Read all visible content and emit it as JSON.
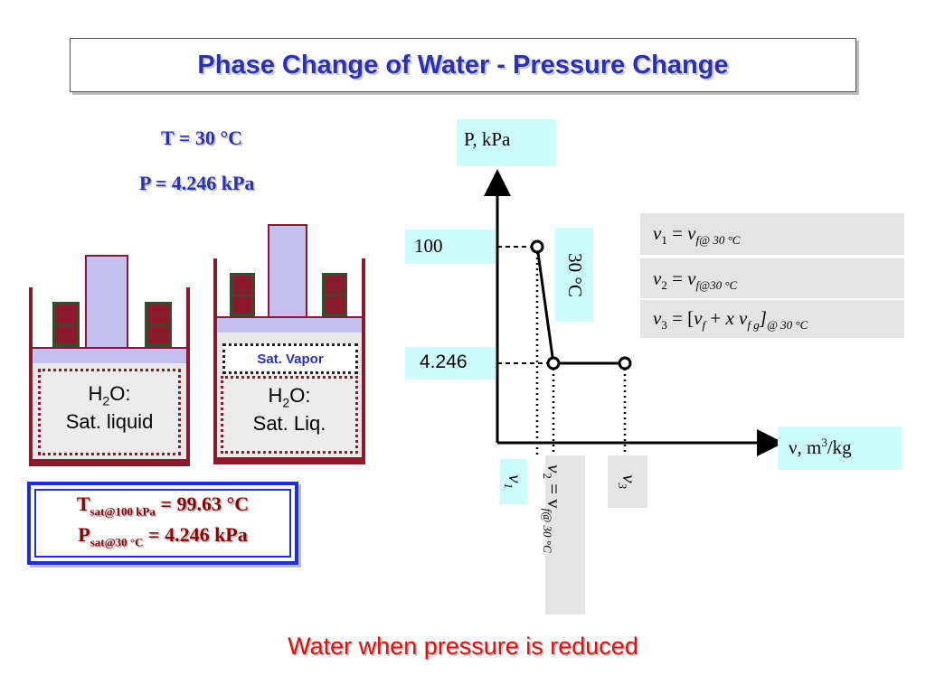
{
  "title": "Phase Change of Water - Pressure Change",
  "conditions": {
    "temperature": "T = 30 °C",
    "pressure": "P = 4.246 kPa"
  },
  "cylinder_left": {
    "h2o": "H",
    "h2o_sub": "2",
    "h2o_rest": "O:",
    "state": "Sat. liquid"
  },
  "cylinder_right": {
    "vapor": "Sat. Vapor",
    "h2o": "H",
    "h2o_sub": "2",
    "h2o_rest": "O:",
    "state": "Sat. Liq."
  },
  "sat_props": {
    "line1_main": "T",
    "line1_sub": "sat@100 kPa",
    "line1_rest": " = 99.63 °C",
    "line2_main": "P",
    "line2_sub": "sat@30 °C",
    "line2_rest": " = 4.246 kPa"
  },
  "diagram": {
    "y_axis_label": "P, kPa",
    "x_axis_label_pre": "ν, m",
    "x_axis_label_sup": "3",
    "x_axis_label_post": "/kg",
    "p_high": "100",
    "p_low": "4.246",
    "isotherm": "30 °C",
    "v1": "v",
    "v1_sub": "1",
    "v2_label": "v",
    "v2_sub": "2",
    "v2_eq": " = v",
    "v2_eq_sub": "f@ 30 °C",
    "v3": "v",
    "v3_sub": "3"
  },
  "equations": {
    "e1": {
      "lhs": "v",
      "lhs_sub": "1",
      "mid": " = ",
      "rhs": "v",
      "rhs_sub": "f@ 30 °C"
    },
    "e2": {
      "lhs": "v",
      "lhs_sub": "2",
      "mid": " = ",
      "rhs": "v",
      "rhs_sub": "f@30 °C"
    },
    "e3": {
      "lhs": "v",
      "lhs_sub": "3",
      "mid": " = [",
      "a": "v",
      "a_sub": "f",
      "plus": " + ",
      "x": "x",
      "b": " v",
      "b_sub": "f g",
      "close": "]",
      "tail_sub": "@ 30 °C"
    }
  },
  "footer": "Water when pressure is reduced",
  "colors": {
    "title": "#2a30b8",
    "wall": "#8b1a2c",
    "piston": "#c4c0ef",
    "highlight_box": "#ccfcfc",
    "footer": "#e01010"
  }
}
